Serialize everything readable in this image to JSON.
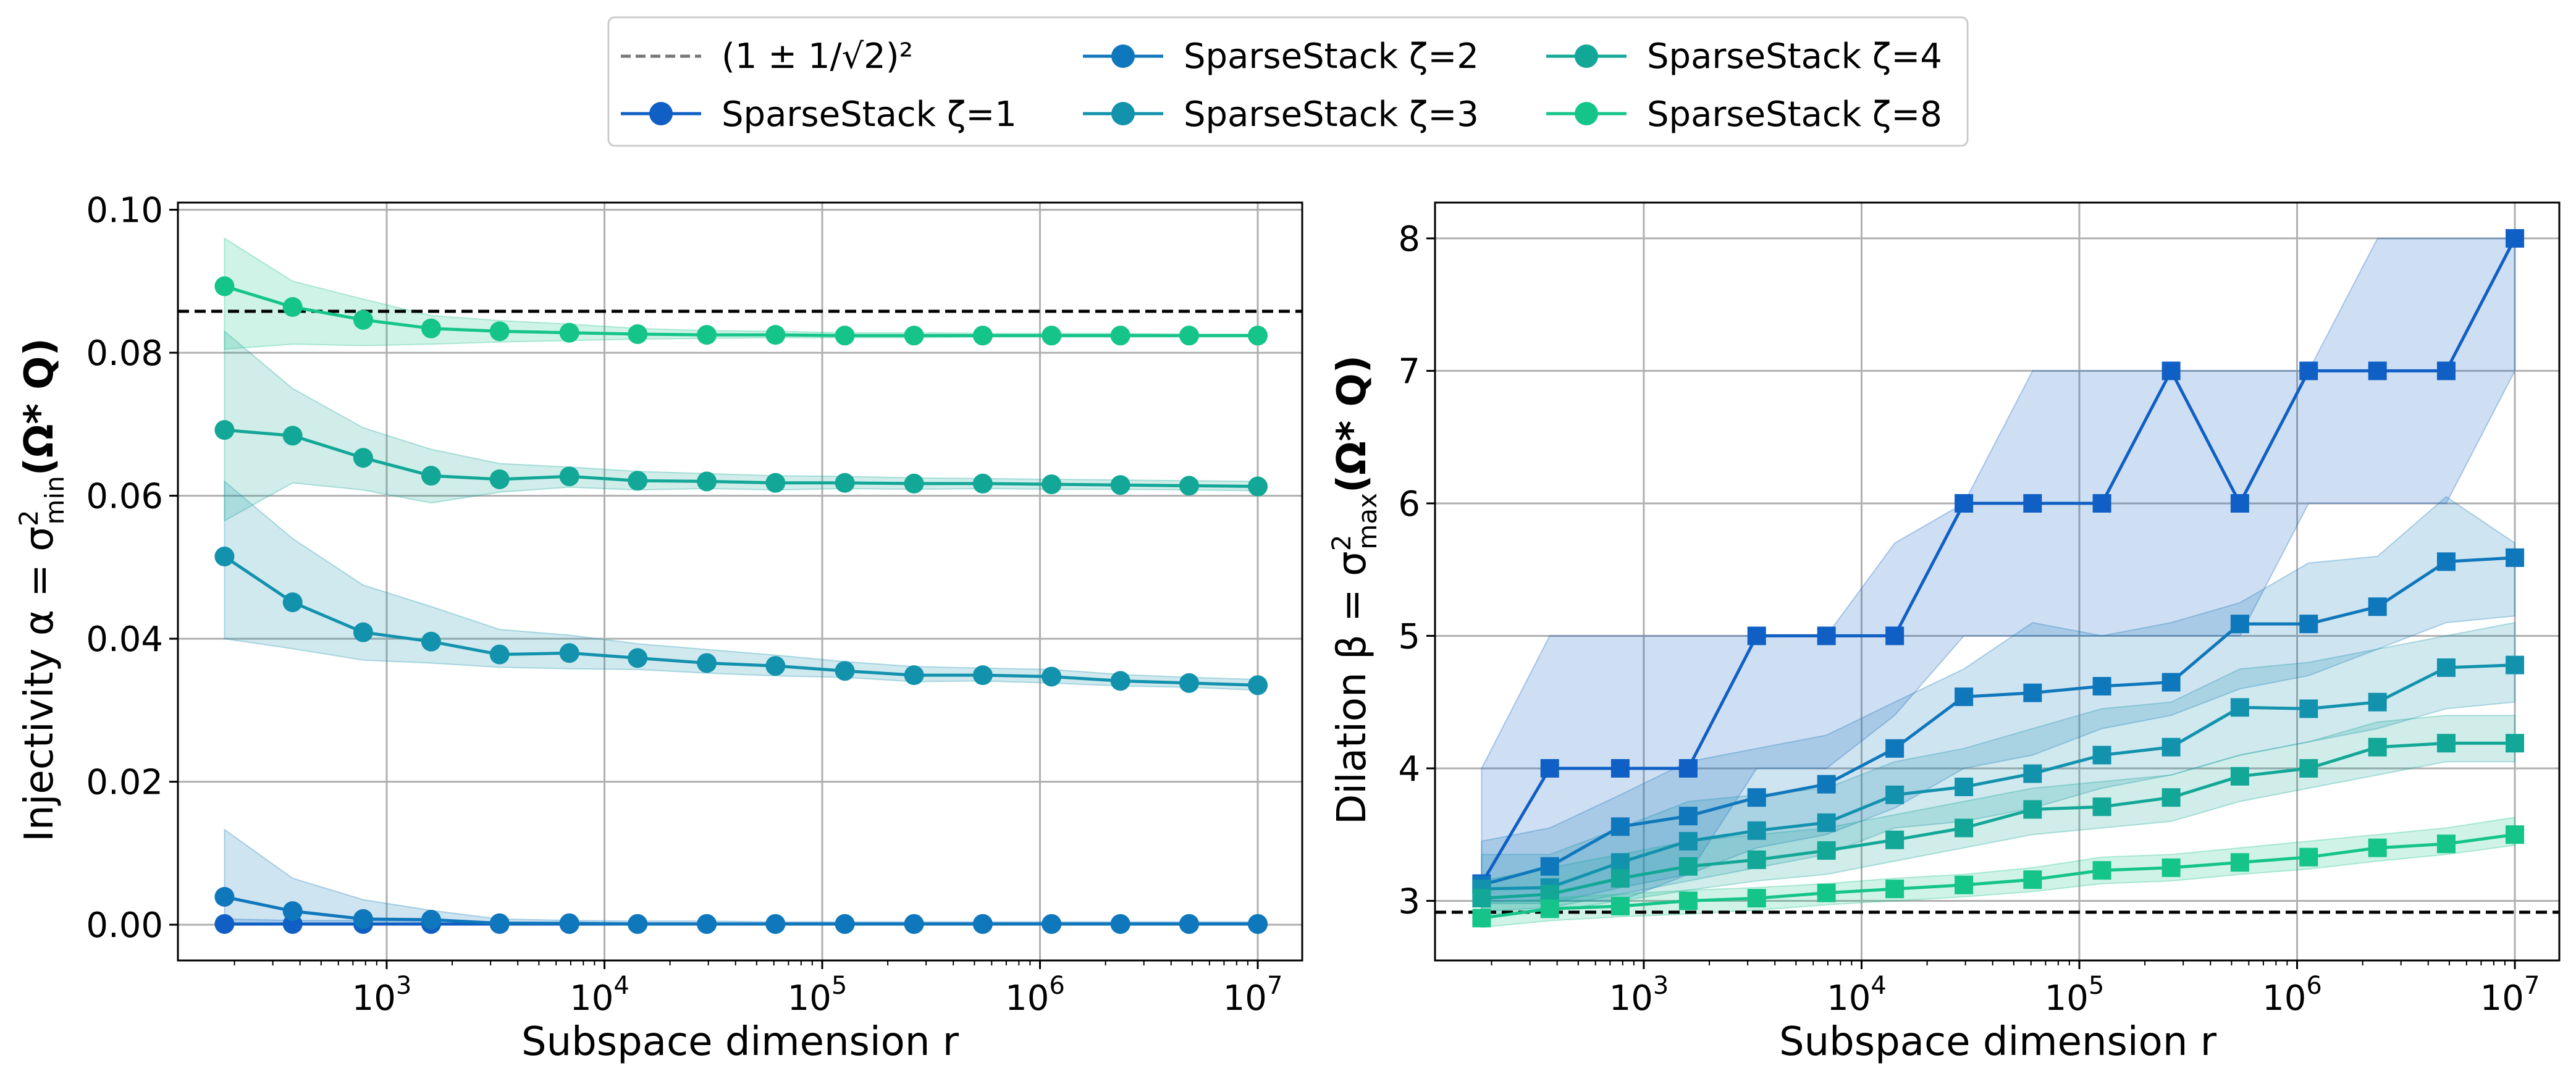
{
  "legend": {
    "entries": [
      {
        "label": "(1 ± 1/√2)²",
        "style": "dashed",
        "color": "#777777"
      },
      {
        "label": "SparseStack ζ=1",
        "color": "#0f5fc5"
      },
      {
        "label": "SparseStack ζ=2",
        "color": "#0f77bb"
      },
      {
        "label": "SparseStack ζ=3",
        "color": "#1392ad"
      },
      {
        "label": "SparseStack ζ=4",
        "color": "#12a796"
      },
      {
        "label": "SparseStack ζ=8",
        "color": "#14c489"
      }
    ],
    "placement": "top-center"
  },
  "left_axis": {
    "ylabel_prefix": "Injectivity α = σ",
    "ylabel_sup": "2",
    "ylabel_sub": "min",
    "ylabel_suffix": "(Ω* Q)",
    "xlabel": "Subspace dimension r",
    "ytick_labels": [
      "0.00",
      "0.02",
      "0.04",
      "0.06",
      "0.08",
      "0.10"
    ],
    "xtick_labels": [
      {
        "base": "10",
        "exp": "3"
      },
      {
        "base": "10",
        "exp": "4"
      },
      {
        "base": "10",
        "exp": "5"
      },
      {
        "base": "10",
        "exp": "6"
      },
      {
        "base": "10",
        "exp": "7"
      }
    ]
  },
  "right_axis": {
    "ylabel_prefix": "Dilation β = σ",
    "ylabel_sup": "2",
    "ylabel_sub": "max",
    "ylabel_suffix": "(Ω* Q)",
    "xlabel": "Subspace dimension r",
    "ytick_labels": [
      "3",
      "4",
      "5",
      "6",
      "7",
      "8"
    ],
    "xtick_labels": [
      {
        "base": "10",
        "exp": "3"
      },
      {
        "base": "10",
        "exp": "4"
      },
      {
        "base": "10",
        "exp": "5"
      },
      {
        "base": "10",
        "exp": "6"
      },
      {
        "base": "10",
        "exp": "7"
      }
    ]
  },
  "chart_data": [
    {
      "type": "line",
      "xlabel": "Subspace dimension r",
      "ylabel": "Injectivity α = σ²min(Ω* Q)",
      "xscale": "log",
      "xlim": [
        110,
        16000000
      ],
      "ylim": [
        -0.005,
        0.101
      ],
      "yticks": [
        0.0,
        0.02,
        0.04,
        0.06,
        0.08,
        0.1
      ],
      "xticks": [
        1000,
        10000,
        100000,
        1000000,
        10000000
      ],
      "grid": true,
      "marker": "circle",
      "reference_line": {
        "label": "(1 ± 1/√2)²",
        "y": 0.0858
      },
      "x": [
        180,
        370,
        780,
        1600,
        3300,
        6900,
        14200,
        29500,
        61000,
        127000,
        264000,
        546000,
        1130000,
        2340000,
        4840000,
        10000000
      ],
      "series": [
        {
          "name": "SparseStack ζ=1",
          "color": "#0f5fc5",
          "values": [
            0.0001,
            0.0001,
            0.0001,
            0.0001,
            0.0001,
            0.0001,
            0.0001,
            0.0001,
            0.0001,
            0.0001,
            0.0001,
            0.0001,
            0.0001,
            0.0001,
            0.0001,
            0.0001
          ],
          "lower": [
            0.0,
            0.0,
            0.0,
            0.0,
            0.0,
            0.0,
            0.0,
            0.0,
            0.0,
            0.0,
            0.0,
            0.0,
            0.0,
            0.0,
            0.0,
            0.0
          ],
          "upper": [
            0.0008,
            0.0006,
            0.0006,
            0.0005,
            0.0004,
            0.0003,
            0.0003,
            0.0003,
            0.0003,
            0.0003,
            0.0003,
            0.0003,
            0.0003,
            0.0003,
            0.0003,
            0.0003
          ]
        },
        {
          "name": "SparseStack ζ=2",
          "color": "#0f77bb",
          "values": [
            0.0039,
            0.0019,
            0.0008,
            0.0007,
            0.0002,
            0.0002,
            0.0001,
            0.0001,
            0.0001,
            0.0001,
            0.0001,
            0.0001,
            0.0001,
            0.0001,
            0.0001,
            0.0001
          ],
          "lower": [
            0.0,
            0.0,
            0.0,
            0.0,
            0.0,
            0.0,
            0.0,
            0.0,
            0.0,
            0.0,
            0.0,
            0.0,
            0.0,
            0.0,
            0.0,
            0.0
          ],
          "upper": [
            0.0133,
            0.0065,
            0.0035,
            0.002,
            0.0008,
            0.0006,
            0.0005,
            0.0005,
            0.0004,
            0.0004,
            0.0004,
            0.0004,
            0.0004,
            0.0004,
            0.0004,
            0.0004
          ]
        },
        {
          "name": "SparseStack ζ=3",
          "color": "#1392ad",
          "values": [
            0.0515,
            0.0451,
            0.0409,
            0.0396,
            0.0378,
            0.038,
            0.0373,
            0.0366,
            0.0362,
            0.0355,
            0.0349,
            0.0349,
            0.0347,
            0.0341,
            0.0338,
            0.0335
          ],
          "lower": [
            0.04,
            0.0386,
            0.037,
            0.0366,
            0.036,
            0.0358,
            0.0357,
            0.0352,
            0.0348,
            0.0346,
            0.034,
            0.0341,
            0.0338,
            0.0334,
            0.0332,
            0.0328
          ],
          "upper": [
            0.062,
            0.054,
            0.0475,
            0.0445,
            0.0413,
            0.0405,
            0.0393,
            0.0385,
            0.0377,
            0.0368,
            0.0361,
            0.0359,
            0.0357,
            0.035,
            0.0346,
            0.0343
          ]
        },
        {
          "name": "SparseStack ζ=4",
          "color": "#12a796",
          "values": [
            0.0692,
            0.0684,
            0.0653,
            0.0628,
            0.0623,
            0.0627,
            0.0621,
            0.062,
            0.0618,
            0.0618,
            0.0617,
            0.0617,
            0.0616,
            0.0615,
            0.0614,
            0.0613
          ],
          "lower": [
            0.0565,
            0.0618,
            0.0608,
            0.059,
            0.0605,
            0.0612,
            0.0608,
            0.061,
            0.0608,
            0.061,
            0.0609,
            0.061,
            0.0609,
            0.0609,
            0.0608,
            0.0607
          ],
          "upper": [
            0.083,
            0.075,
            0.0695,
            0.0665,
            0.0645,
            0.064,
            0.0634,
            0.0631,
            0.0628,
            0.0627,
            0.0625,
            0.0624,
            0.0623,
            0.0622,
            0.0621,
            0.062
          ]
        },
        {
          "name": "SparseStack ζ=8",
          "color": "#14c489",
          "values": [
            0.0893,
            0.0864,
            0.0846,
            0.0834,
            0.083,
            0.0828,
            0.0826,
            0.0825,
            0.0825,
            0.0824,
            0.0824,
            0.0824,
            0.0824,
            0.0824,
            0.0824,
            0.0824
          ],
          "lower": [
            0.0805,
            0.0812,
            0.081,
            0.0812,
            0.0815,
            0.0817,
            0.0819,
            0.082,
            0.0821,
            0.0821,
            0.0821,
            0.0822,
            0.0822,
            0.0822,
            0.0822,
            0.0822
          ],
          "upper": [
            0.096,
            0.09,
            0.0875,
            0.0852,
            0.0845,
            0.084,
            0.0834,
            0.0831,
            0.083,
            0.0828,
            0.0828,
            0.0827,
            0.0827,
            0.0827,
            0.0826,
            0.0826
          ]
        }
      ]
    },
    {
      "type": "line",
      "xlabel": "Subspace dimension r",
      "ylabel": "Dilation β = σ²max(Ω* Q)",
      "xscale": "log",
      "xlim": [
        110,
        16000000
      ],
      "ylim": [
        2.55,
        8.27
      ],
      "yticks": [
        3,
        4,
        5,
        6,
        7,
        8
      ],
      "xticks": [
        1000,
        10000,
        100000,
        1000000,
        10000000
      ],
      "grid": true,
      "marker": "square",
      "reference_line": {
        "label": "(1 ± 1/√2)²",
        "y": 2.914
      },
      "x": [
        180,
        370,
        780,
        1600,
        3300,
        6900,
        14200,
        29500,
        61000,
        127000,
        264000,
        546000,
        1130000,
        2340000,
        4840000,
        10000000
      ],
      "series": [
        {
          "name": "SparseStack ζ=1",
          "color": "#0f5fc5",
          "values": [
            3.13,
            4.0,
            4.0,
            4.0,
            5.0,
            5.0,
            5.0,
            6.0,
            6.0,
            6.0,
            7.0,
            6.0,
            7.0,
            7.0,
            7.0,
            8.0
          ],
          "lower": [
            3.0,
            3.0,
            3.0,
            3.2,
            4.0,
            4.0,
            4.4,
            5.0,
            5.0,
            5.0,
            5.0,
            5.0,
            6.0,
            6.0,
            6.0,
            7.0
          ],
          "upper": [
            4.0,
            5.0,
            5.0,
            5.0,
            5.0,
            5.0,
            5.7,
            6.0,
            7.0,
            7.0,
            7.0,
            7.0,
            7.0,
            8.0,
            8.0,
            8.0
          ]
        },
        {
          "name": "SparseStack ζ=2",
          "color": "#0f77bb",
          "values": [
            3.12,
            3.26,
            3.56,
            3.64,
            3.78,
            3.88,
            4.15,
            4.54,
            4.57,
            4.62,
            4.65,
            5.09,
            5.09,
            5.22,
            5.56,
            5.59
          ],
          "lower": [
            2.98,
            2.98,
            3.1,
            3.2,
            3.4,
            3.5,
            3.7,
            4.0,
            4.1,
            4.3,
            4.4,
            4.6,
            4.7,
            4.9,
            5.1,
            5.15
          ],
          "upper": [
            3.45,
            3.55,
            3.8,
            4.05,
            4.15,
            4.25,
            4.5,
            4.75,
            5.1,
            5.0,
            5.1,
            5.25,
            5.55,
            5.6,
            6.05,
            5.7
          ]
        },
        {
          "name": "SparseStack ζ=3",
          "color": "#1392ad",
          "values": [
            3.09,
            3.1,
            3.29,
            3.45,
            3.53,
            3.59,
            3.8,
            3.86,
            3.96,
            4.1,
            4.16,
            4.46,
            4.45,
            4.5,
            4.76,
            4.78
          ],
          "lower": [
            2.92,
            2.95,
            3.05,
            3.15,
            3.25,
            3.35,
            3.55,
            3.6,
            3.7,
            3.85,
            3.95,
            4.1,
            4.2,
            4.3,
            4.45,
            4.5
          ],
          "upper": [
            3.35,
            3.35,
            3.55,
            3.75,
            3.8,
            3.85,
            4.05,
            4.15,
            4.3,
            4.45,
            4.5,
            4.75,
            4.8,
            4.9,
            5.0,
            5.1
          ]
        },
        {
          "name": "SparseStack ζ=4",
          "color": "#12a796",
          "values": [
            3.02,
            3.05,
            3.17,
            3.26,
            3.31,
            3.38,
            3.46,
            3.55,
            3.69,
            3.71,
            3.78,
            3.94,
            4.0,
            4.16,
            4.19,
            4.19
          ],
          "lower": [
            2.9,
            2.92,
            3.0,
            3.08,
            3.15,
            3.2,
            3.3,
            3.4,
            3.5,
            3.55,
            3.6,
            3.75,
            3.85,
            3.95,
            4.05,
            4.05
          ],
          "upper": [
            3.15,
            3.25,
            3.35,
            3.45,
            3.5,
            3.55,
            3.65,
            3.75,
            3.85,
            3.9,
            3.95,
            4.1,
            4.2,
            4.35,
            4.4,
            4.4
          ]
        },
        {
          "name": "SparseStack ζ=8",
          "color": "#14c489",
          "values": [
            2.87,
            2.94,
            2.96,
            3.0,
            3.02,
            3.06,
            3.09,
            3.12,
            3.16,
            3.23,
            3.25,
            3.29,
            3.33,
            3.4,
            3.43,
            3.5
          ],
          "lower": [
            2.8,
            2.85,
            2.88,
            2.9,
            2.93,
            2.97,
            3.0,
            3.03,
            3.07,
            3.13,
            3.15,
            3.2,
            3.24,
            3.3,
            3.35,
            3.42
          ],
          "upper": [
            2.98,
            3.02,
            3.05,
            3.08,
            3.1,
            3.13,
            3.17,
            3.2,
            3.25,
            3.33,
            3.35,
            3.4,
            3.45,
            3.5,
            3.55,
            3.63
          ]
        }
      ]
    }
  ]
}
